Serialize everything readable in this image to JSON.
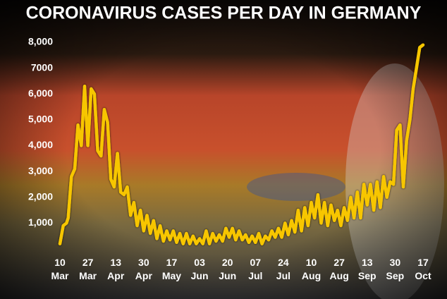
{
  "chart_data": {
    "type": "line",
    "title": "CORONAVIRUS CASES PER DAY IN GERMANY",
    "color": "#f7c600",
    "xlim": [
      0,
      221
    ],
    "xticks": [
      {
        "value": 0,
        "label": "10 Mar"
      },
      {
        "value": 17,
        "label": "27 Mar"
      },
      {
        "value": 34,
        "label": "13 Apr"
      },
      {
        "value": 51,
        "label": "30 Apr"
      },
      {
        "value": 68,
        "label": "17 May"
      },
      {
        "value": 85,
        "label": "03 Jun"
      },
      {
        "value": 102,
        "label": "20 Jun"
      },
      {
        "value": 119,
        "label": "07 Jul"
      },
      {
        "value": 136,
        "label": "24 Jul"
      },
      {
        "value": 153,
        "label": "10 Aug"
      },
      {
        "value": 170,
        "label": "27 Aug"
      },
      {
        "value": 187,
        "label": "13 Sep"
      },
      {
        "value": 204,
        "label": "30 Sep"
      },
      {
        "value": 221,
        "label": "17 Oct"
      }
    ],
    "ylim": [
      0,
      8000
    ],
    "yticks": [
      {
        "value": 1000,
        "label": "1,000"
      },
      {
        "value": 2000,
        "label": "2,000"
      },
      {
        "value": 3000,
        "label": "3,000"
      },
      {
        "value": 4000,
        "label": "4,000"
      },
      {
        "value": 5000,
        "label": "5,000"
      },
      {
        "value": 6000,
        "label": "6,000"
      },
      {
        "value": 7000,
        "label": "7000"
      },
      {
        "value": 8000,
        "label": "8,000"
      }
    ],
    "x": [
      0,
      2,
      4,
      5,
      7,
      9,
      11,
      13,
      15,
      17,
      19,
      21,
      23,
      25,
      27,
      29,
      31,
      33,
      35,
      37,
      39,
      41,
      43,
      45,
      47,
      49,
      51,
      53,
      55,
      57,
      59,
      61,
      63,
      65,
      67,
      69,
      71,
      73,
      75,
      77,
      79,
      81,
      83,
      85,
      87,
      89,
      91,
      93,
      95,
      97,
      99,
      101,
      103,
      105,
      107,
      109,
      111,
      113,
      115,
      117,
      119,
      121,
      123,
      125,
      127,
      129,
      131,
      133,
      135,
      137,
      139,
      141,
      143,
      145,
      147,
      149,
      151,
      153,
      155,
      157,
      159,
      161,
      163,
      165,
      167,
      169,
      171,
      173,
      175,
      177,
      179,
      181,
      183,
      185,
      187,
      189,
      191,
      193,
      195,
      197,
      199,
      201,
      203,
      205,
      207,
      209,
      211,
      213,
      215,
      217,
      219,
      221
    ],
    "values": [
      200,
      900,
      1000,
      1200,
      2800,
      3100,
      4800,
      4000,
      6300,
      4000,
      6200,
      6000,
      3800,
      3600,
      5400,
      4900,
      2700,
      2400,
      3700,
      2200,
      2100,
      2400,
      1300,
      1800,
      900,
      1500,
      700,
      1300,
      600,
      1100,
      400,
      900,
      300,
      700,
      350,
      700,
      250,
      600,
      200,
      600,
      200,
      500,
      200,
      400,
      200,
      700,
      200,
      600,
      300,
      550,
      300,
      800,
      450,
      800,
      350,
      700,
      350,
      550,
      250,
      500,
      250,
      600,
      200,
      500,
      350,
      700,
      450,
      800,
      450,
      1000,
      550,
      1100,
      650,
      1500,
      700,
      1600,
      900,
      1800,
      1200,
      2100,
      1000,
      1800,
      900,
      1700,
      1100,
      1500,
      900,
      1600,
      1100,
      2000,
      1200,
      2200,
      1200,
      2500,
      1700,
      2500,
      1500,
      2600,
      1600,
      2800,
      2000,
      2600,
      2500,
      4600,
      4800,
      2400,
      4200,
      5000,
      6200,
      7000,
      7800,
      7900
    ]
  }
}
